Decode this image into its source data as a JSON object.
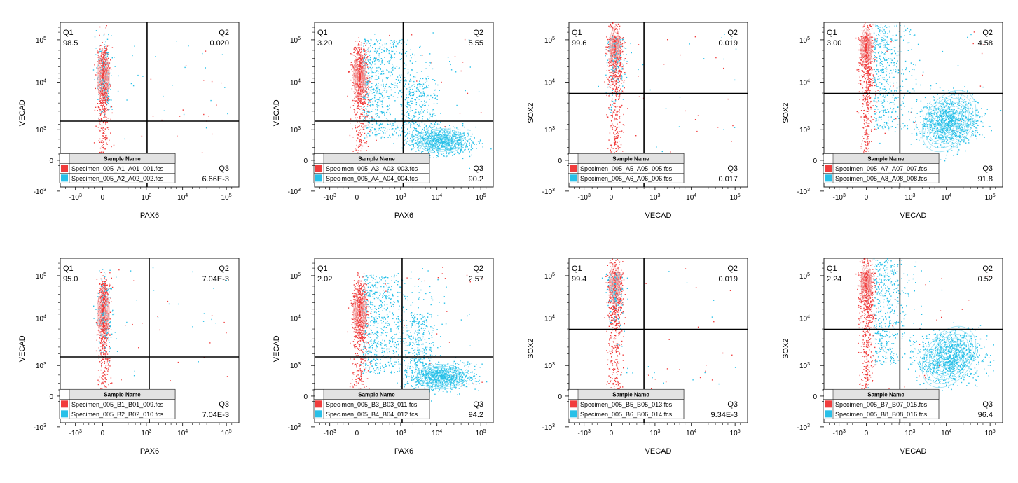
{
  "chart_data": [
    {
      "type": "scatter",
      "xlabel": "PAX6",
      "ylabel": "VECAD",
      "quadrants": [
        {
          "name": "Q1",
          "value": "98.5"
        },
        {
          "name": "Q2",
          "value": "0.020"
        },
        {
          "name": "Q3",
          "value": "6.66E-3"
        }
      ],
      "legend_title": "Sample Name",
      "series": [
        {
          "name": "Specimen_005_A1_A01_001.fcs",
          "color": "#f03c3c"
        },
        {
          "name": "Specimen_005_A2_A02_002.fcs",
          "color": "#28c0e8"
        }
      ]
    },
    {
      "type": "scatter",
      "xlabel": "PAX6",
      "ylabel": "VECAD",
      "quadrants": [
        {
          "name": "Q1",
          "value": "3.20"
        },
        {
          "name": "Q2",
          "value": "5.55"
        },
        {
          "name": "Q3",
          "value": "90.2"
        }
      ],
      "legend_title": "Sample Name",
      "series": [
        {
          "name": "Specimen_005_A3_A03_003.fcs",
          "color": "#f03c3c"
        },
        {
          "name": "Specimen_005_A4_A04_004.fcs",
          "color": "#28c0e8"
        }
      ]
    },
    {
      "type": "scatter",
      "xlabel": "VECAD",
      "ylabel": "SOX2",
      "quadrants": [
        {
          "name": "Q1",
          "value": "99.6"
        },
        {
          "name": "Q2",
          "value": "0.019"
        },
        {
          "name": "Q3",
          "value": "0.017"
        }
      ],
      "legend_title": "Sample Name",
      "series": [
        {
          "name": "Specimen_005_A5_A05_005.fcs",
          "color": "#f03c3c"
        },
        {
          "name": "Specimen_005_A6_A06_006.fcs",
          "color": "#28c0e8"
        }
      ]
    },
    {
      "type": "scatter",
      "xlabel": "VECAD",
      "ylabel": "SOX2",
      "quadrants": [
        {
          "name": "Q1",
          "value": "3.00"
        },
        {
          "name": "Q2",
          "value": "4.58"
        },
        {
          "name": "Q3",
          "value": "91.8"
        }
      ],
      "legend_title": "Sample Name",
      "series": [
        {
          "name": "Specimen_005_A7_A07_007.fcs",
          "color": "#f03c3c"
        },
        {
          "name": "Specimen_005_A8_A08_008.fcs",
          "color": "#28c0e8"
        }
      ]
    },
    {
      "type": "scatter",
      "xlabel": "PAX6",
      "ylabel": "VECAD",
      "quadrants": [
        {
          "name": "Q1",
          "value": "95.0"
        },
        {
          "name": "Q2",
          "value": "7.04E-3"
        },
        {
          "name": "Q3",
          "value": "7.04E-3"
        }
      ],
      "legend_title": "Sample Name",
      "series": [
        {
          "name": "Specimen_005_B1_B01_009.fcs",
          "color": "#f03c3c"
        },
        {
          "name": "Specimen_005_B2_B02_010.fcs",
          "color": "#28c0e8"
        }
      ]
    },
    {
      "type": "scatter",
      "xlabel": "PAX6",
      "ylabel": "VECAD",
      "quadrants": [
        {
          "name": "Q1",
          "value": "2.02"
        },
        {
          "name": "Q2",
          "value": "2.57"
        },
        {
          "name": "Q3",
          "value": "94.2"
        }
      ],
      "legend_title": "Sample Name",
      "series": [
        {
          "name": "Specimen_005_B3_B03_011.fcs",
          "color": "#f03c3c"
        },
        {
          "name": "Specimen_005_B4_B04_012.fcs",
          "color": "#28c0e8"
        }
      ]
    },
    {
      "type": "scatter",
      "xlabel": "VECAD",
      "ylabel": "SOX2",
      "quadrants": [
        {
          "name": "Q1",
          "value": "99.4"
        },
        {
          "name": "Q2",
          "value": "0.019"
        },
        {
          "name": "Q3",
          "value": "9.34E-3"
        }
      ],
      "legend_title": "Sample Name",
      "series": [
        {
          "name": "Specimen_005_B5_B05_013.fcs",
          "color": "#f03c3c"
        },
        {
          "name": "Specimen_005_B6_B06_014.fcs",
          "color": "#28c0e8"
        }
      ]
    },
    {
      "type": "scatter",
      "xlabel": "VECAD",
      "ylabel": "SOX2",
      "quadrants": [
        {
          "name": "Q1",
          "value": "2.24"
        },
        {
          "name": "Q2",
          "value": "0.52"
        },
        {
          "name": "Q3",
          "value": "96.4"
        }
      ],
      "legend_title": "Sample Name",
      "series": [
        {
          "name": "Specimen_005_B7_B07_015.fcs",
          "color": "#f03c3c"
        },
        {
          "name": "Specimen_005_B8_B08_016.fcs",
          "color": "#28c0e8"
        }
      ]
    }
  ]
}
